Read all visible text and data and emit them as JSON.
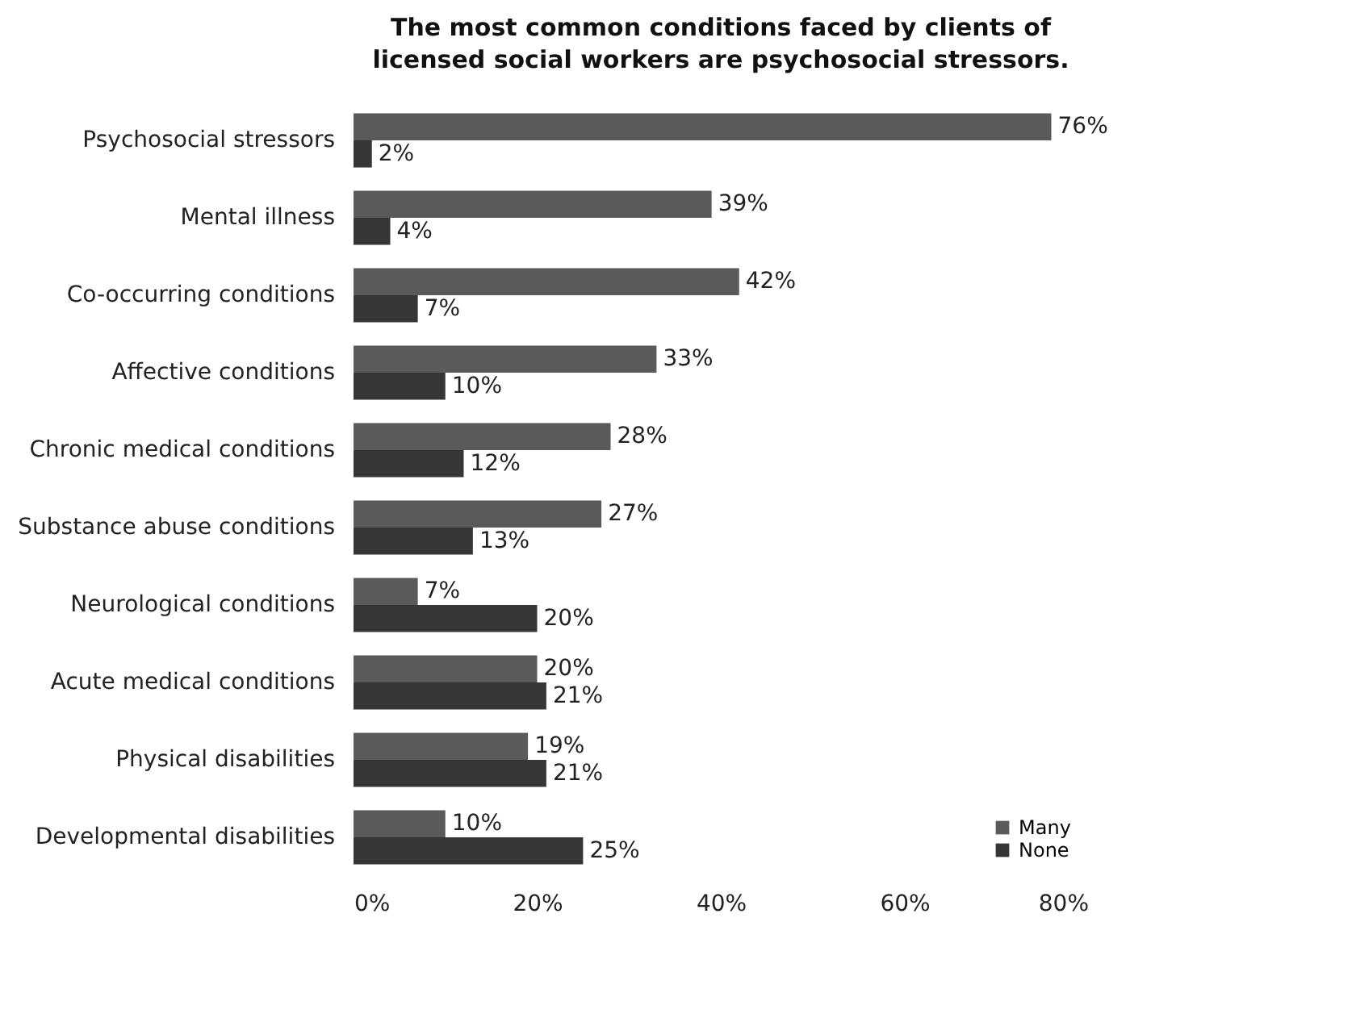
{
  "chart_data": {
    "type": "bar",
    "orientation": "horizontal",
    "title": "The most common conditions faced by clients of licensed social workers are psychosocial stressors.",
    "categories": [
      "Psychosocial stressors",
      "Mental illness",
      "Co-occurring conditions",
      "Affective conditions",
      "Chronic medical conditions",
      "Substance abuse conditions",
      "Neurological conditions",
      "Acute medical conditions",
      "Physical disabilities",
      "Developmental disabilities"
    ],
    "series": [
      {
        "name": "Many",
        "color": "#5a5a5a",
        "values": [
          76,
          39,
          42,
          33,
          28,
          27,
          7,
          20,
          19,
          10
        ],
        "value_labels": [
          "76%",
          "39%",
          "42%",
          "33%",
          "28%",
          "27%",
          "7%",
          "20%",
          "19%",
          "10%"
        ]
      },
      {
        "name": "None",
        "color": "#363636",
        "values": [
          2,
          4,
          7,
          10,
          12,
          13,
          20,
          21,
          21,
          25
        ],
        "value_labels": [
          "2%",
          "4%",
          "7%",
          "10%",
          "12%",
          "13%",
          "20%",
          "21%",
          "21%",
          "25%"
        ]
      }
    ],
    "xlim": [
      0,
      80
    ],
    "xticks": [
      {
        "value": 0,
        "label": "0%"
      },
      {
        "value": 20,
        "label": "20%"
      },
      {
        "value": 40,
        "label": "40%"
      },
      {
        "value": 60,
        "label": "60%"
      },
      {
        "value": 80,
        "label": "80%"
      }
    ],
    "grid": false,
    "legend": "bottom right"
  }
}
